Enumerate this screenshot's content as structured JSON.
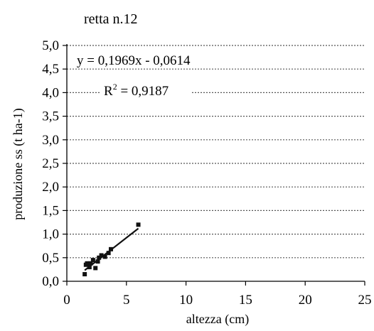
{
  "chart_data": {
    "type": "scatter",
    "title": "retta n.12",
    "xlabel": "altezza (cm)",
    "ylabel": "produzione ss (t ha-1)",
    "xlim": [
      0,
      25
    ],
    "ylim": [
      0,
      5
    ],
    "x_ticks": [
      "0",
      "5",
      "10",
      "15",
      "20",
      "25"
    ],
    "y_ticks": [
      "0,0",
      "0,5",
      "1,0",
      "1,5",
      "2,0",
      "2,5",
      "3,0",
      "3,5",
      "4,0",
      "4,5",
      "5,0"
    ],
    "grid": "horizontal dotted",
    "series": [
      {
        "points": [
          [
            1.5,
            0.15
          ],
          [
            1.6,
            0.35
          ],
          [
            1.7,
            0.38
          ],
          [
            1.9,
            0.3
          ],
          [
            2.0,
            0.38
          ],
          [
            2.2,
            0.45
          ],
          [
            2.4,
            0.28
          ],
          [
            2.6,
            0.42
          ],
          [
            2.7,
            0.5
          ],
          [
            2.9,
            0.55
          ],
          [
            3.2,
            0.52
          ],
          [
            3.5,
            0.6
          ],
          [
            3.7,
            0.68
          ],
          [
            6.0,
            1.2
          ]
        ]
      }
    ],
    "trendline": {
      "slope": 0.1969,
      "intercept": -0.0614,
      "x_range": [
        1.5,
        6.0
      ],
      "equation": "y = 0,1969x - 0,0614",
      "r2_prefix": "R",
      "r2_sup": "2",
      "r2_value": " = 0,9187"
    },
    "colors": {
      "marker": "#111111",
      "line": "#111111",
      "grid": "#555555"
    }
  }
}
